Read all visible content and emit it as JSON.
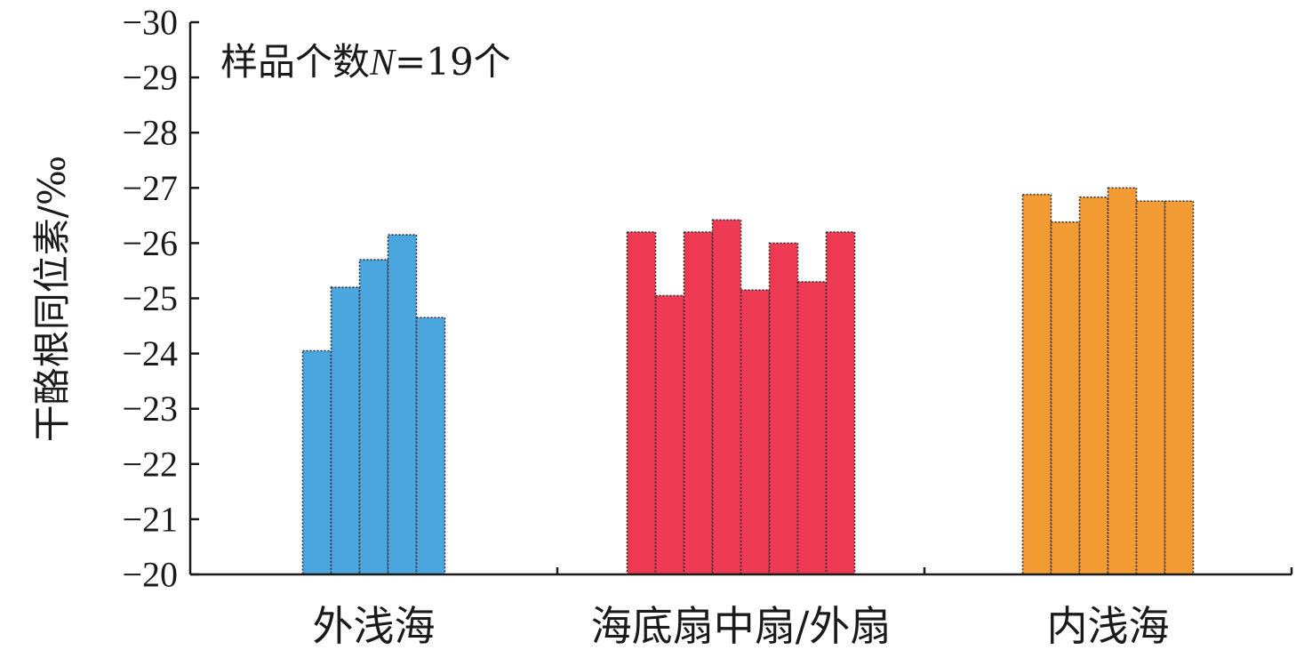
{
  "chart_data": {
    "type": "bar",
    "ylabel": "干酪根同位素/‰",
    "ylim": [
      -20,
      -30
    ],
    "y_axis_inverted": true,
    "yticks": [
      "−20",
      "−21",
      "−22",
      "−23",
      "−24",
      "−25",
      "−26",
      "−27",
      "−28",
      "−29",
      "−30"
    ],
    "ytick_values": [
      -20,
      -21,
      -22,
      -23,
      -24,
      -25,
      -26,
      -27,
      -28,
      -29,
      -30
    ],
    "annotation": {
      "prefix": "样品个数",
      "variable": "N",
      "suffix": "=19个"
    },
    "grid": false,
    "legend": "none",
    "groups": [
      {
        "label": "外浅海",
        "color": "#4BA6E0",
        "values": [
          -24.05,
          -25.2,
          -25.7,
          -26.15,
          -24.65
        ]
      },
      {
        "label": "海底扇中扇/外扇",
        "color": "#EE3A52",
        "values": [
          -26.2,
          -25.05,
          -26.2,
          -26.42,
          -25.15,
          -26.0,
          -25.3,
          -26.2
        ]
      },
      {
        "label": "内浅海",
        "color": "#F39C34",
        "values": [
          -26.88,
          -26.38,
          -26.83,
          -27.0,
          -26.76,
          -26.76
        ]
      }
    ]
  }
}
